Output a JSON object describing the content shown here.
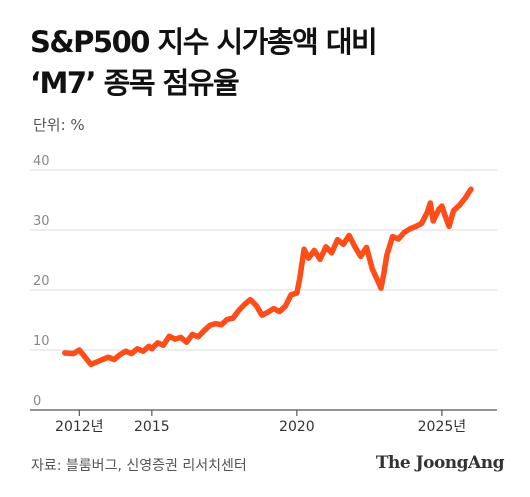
{
  "title_line1": "S&P500 지수 시가총액 대비",
  "title_line2": "‘M7’ 종목 점유율",
  "unit": "단위: %",
  "source": "자료: 블룸버그, 신영증권 리서치센터",
  "brand": "The JoongAng",
  "colors": {
    "line": "#ff4d1a",
    "grid": "#dcdcdc",
    "axis": "#555555",
    "tick_text": "#888888",
    "x_text": "#333333"
  },
  "chart_data": {
    "type": "line",
    "title": "S&P500 지수 시가총액 대비 ‘M7’ 종목 점유율",
    "ylabel": "단위: %",
    "ylim": [
      0,
      40
    ],
    "yticks": [
      0,
      10,
      20,
      30,
      40
    ],
    "xlim": [
      2010.8,
      2026.9
    ],
    "xticks": [
      {
        "value": 2012.5,
        "label": "2012년"
      },
      {
        "value": 2015,
        "label": "2015"
      },
      {
        "value": 2020,
        "label": "2020"
      },
      {
        "value": 2025,
        "label": "2025년"
      }
    ],
    "grid": true,
    "series": [
      {
        "x": [
          2012.0,
          2012.3,
          2012.5,
          2012.7,
          2012.9,
          2013.1,
          2013.3,
          2013.5,
          2013.7,
          2013.9,
          2014.1,
          2014.3,
          2014.5,
          2014.7,
          2014.9,
          2015.0,
          2015.2,
          2015.4,
          2015.6,
          2015.8,
          2016.0,
          2016.2,
          2016.4,
          2016.6,
          2016.8,
          2017.0,
          2017.2,
          2017.4,
          2017.6,
          2017.8,
          2018.0,
          2018.2,
          2018.4,
          2018.6,
          2018.8,
          2019.0,
          2019.2,
          2019.4,
          2019.6,
          2019.8,
          2020.0,
          2020.1,
          2020.25,
          2020.4,
          2020.6,
          2020.8,
          2021.0,
          2021.2,
          2021.4,
          2021.6,
          2021.8,
          2022.0,
          2022.2,
          2022.4,
          2022.6,
          2022.8,
          2022.9,
          2023.0,
          2023.1,
          2023.3,
          2023.5,
          2023.7,
          2023.9,
          2024.1,
          2024.3,
          2024.5,
          2024.6,
          2024.7,
          2024.9,
          2025.0,
          2025.1,
          2025.25,
          2025.4,
          2025.6,
          2025.8,
          2026.0
        ],
        "values": [
          9.5,
          9.4,
          10.0,
          8.8,
          7.6,
          8.0,
          8.4,
          8.8,
          8.4,
          9.2,
          9.8,
          9.4,
          10.2,
          9.8,
          10.6,
          10.2,
          11.2,
          10.8,
          12.3,
          11.8,
          12.1,
          11.3,
          12.6,
          12.2,
          13.2,
          14.1,
          14.4,
          14.2,
          15.1,
          15.3,
          16.6,
          17.6,
          18.4,
          17.4,
          15.8,
          16.3,
          16.9,
          16.4,
          17.3,
          19.2,
          19.5,
          22.0,
          26.8,
          25.3,
          26.6,
          25.1,
          27.2,
          26.2,
          28.4,
          27.6,
          29.1,
          27.2,
          25.6,
          27.1,
          23.5,
          21.4,
          20.3,
          22.8,
          25.8,
          28.9,
          28.5,
          29.6,
          30.2,
          30.6,
          31.1,
          33.0,
          34.5,
          31.5,
          33.5,
          34.0,
          32.5,
          30.6,
          33.2,
          34.1,
          35.3,
          36.8
        ]
      }
    ]
  }
}
